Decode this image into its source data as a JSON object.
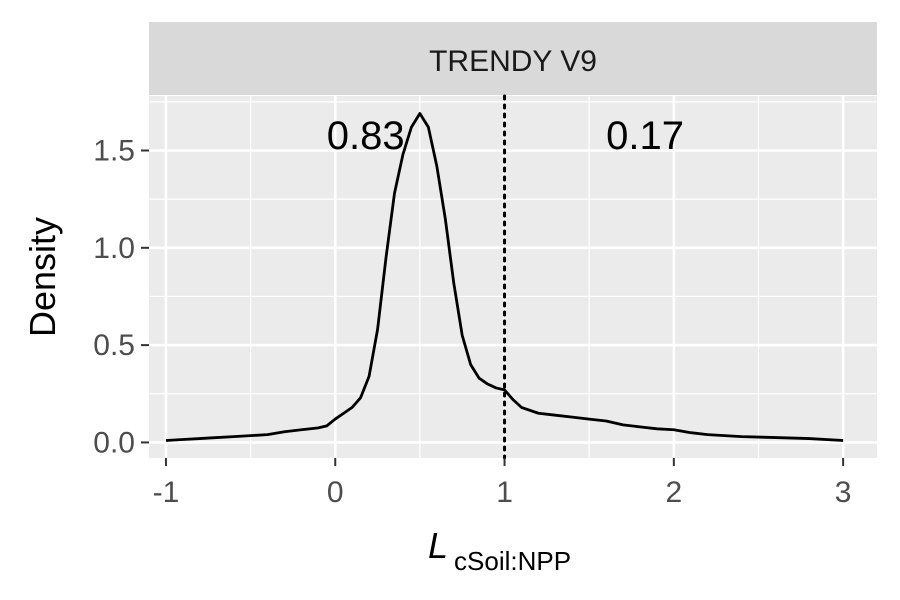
{
  "chart_data": {
    "type": "line",
    "facet_title": "TRENDY V9",
    "xlabel_main": "L",
    "xlabel_sub": "cSoil:NPP",
    "ylabel": "Density",
    "xlim": [
      -1.1,
      3.2
    ],
    "ylim": [
      -0.08,
      1.78
    ],
    "x_ticks": [
      -1,
      0,
      1,
      2,
      3
    ],
    "x_tick_labels": [
      "-1",
      "0",
      "1",
      "2",
      "3"
    ],
    "y_ticks": [
      0.0,
      0.5,
      1.0,
      1.5
    ],
    "y_tick_labels": [
      "0.0",
      "0.5",
      "1.0",
      "1.5"
    ],
    "grid": true,
    "vline": {
      "x": 1,
      "style": "dotted"
    },
    "annotations": [
      {
        "text": "0.83",
        "x": 0.18,
        "y": 1.58
      },
      {
        "text": "0.17",
        "x": 1.83,
        "y": 1.58
      }
    ],
    "series": [
      {
        "x": [
          -1.0,
          -0.9,
          -0.8,
          -0.7,
          -0.6,
          -0.5,
          -0.4,
          -0.3,
          -0.2,
          -0.1,
          -0.05,
          0.0,
          0.05,
          0.1,
          0.15,
          0.2,
          0.25,
          0.3,
          0.35,
          0.4,
          0.45,
          0.5,
          0.55,
          0.6,
          0.65,
          0.7,
          0.75,
          0.8,
          0.85,
          0.9,
          0.95,
          1.0,
          1.05,
          1.1,
          1.2,
          1.3,
          1.4,
          1.5,
          1.6,
          1.7,
          1.8,
          1.9,
          2.0,
          2.1,
          2.2,
          2.4,
          2.6,
          2.8,
          3.0
        ],
        "y": [
          0.01,
          0.015,
          0.02,
          0.025,
          0.03,
          0.035,
          0.04,
          0.055,
          0.065,
          0.075,
          0.085,
          0.12,
          0.15,
          0.18,
          0.23,
          0.34,
          0.58,
          0.95,
          1.28,
          1.48,
          1.62,
          1.69,
          1.62,
          1.42,
          1.15,
          0.82,
          0.55,
          0.4,
          0.33,
          0.3,
          0.28,
          0.27,
          0.22,
          0.18,
          0.15,
          0.14,
          0.13,
          0.12,
          0.11,
          0.09,
          0.08,
          0.07,
          0.065,
          0.05,
          0.04,
          0.03,
          0.025,
          0.02,
          0.01
        ]
      }
    ]
  }
}
